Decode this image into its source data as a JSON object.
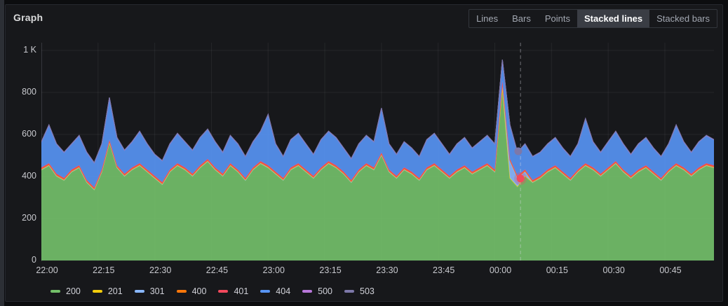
{
  "panel": {
    "title": "Graph"
  },
  "mode_switcher": {
    "options": [
      {
        "label": "Lines",
        "selected": false
      },
      {
        "label": "Bars",
        "selected": false
      },
      {
        "label": "Points",
        "selected": false
      },
      {
        "label": "Stacked lines",
        "selected": true
      },
      {
        "label": "Stacked bars",
        "selected": false
      }
    ]
  },
  "colors": {
    "page_background": "#0c0d0f",
    "panel_background": "#17181b",
    "panel_border": "#26282e",
    "grid": "rgba(204,204,220,0.08)",
    "axis_line": "rgba(204,204,220,0.14)",
    "axis_text": "#c8c9ce",
    "title_text": "#d8d9da",
    "crosshair": "rgba(220,220,230,0.45)"
  },
  "chart_data": {
    "type": "area",
    "stacked": true,
    "grid": true,
    "legend_position": "bottom",
    "title": "Graph",
    "xlabel": "",
    "ylabel": "",
    "ylim": [
      0,
      1000
    ],
    "x_minutes": [
      0,
      2,
      4,
      6,
      8,
      10,
      12,
      14,
      16,
      18,
      20,
      22,
      24,
      26,
      28,
      30,
      32,
      34,
      36,
      38,
      40,
      42,
      44,
      46,
      48,
      50,
      52,
      54,
      56,
      58,
      60,
      62,
      64,
      66,
      68,
      70,
      72,
      74,
      76,
      78,
      80,
      82,
      84,
      86,
      88,
      90,
      92,
      94,
      96,
      98,
      100,
      102,
      104,
      106,
      108,
      110,
      112,
      114,
      116,
      118,
      120,
      122,
      124,
      126,
      128,
      130,
      132,
      134,
      136,
      138,
      140,
      142,
      144,
      146,
      148,
      150,
      152,
      154,
      156,
      158,
      160,
      162,
      164,
      166,
      168,
      170,
      172,
      174,
      176,
      178
    ],
    "x_tick_minutes": [
      0,
      15,
      30,
      45,
      60,
      75,
      90,
      105,
      120,
      135,
      150,
      165
    ],
    "x_tick_labels": [
      "22:00",
      "22:15",
      "22:30",
      "22:45",
      "23:00",
      "23:15",
      "23:30",
      "23:45",
      "00:00",
      "00:15",
      "00:30",
      "00:45"
    ],
    "y_ticks": [
      0,
      200,
      400,
      600,
      800,
      1000
    ],
    "y_tick_labels": [
      "0",
      "200",
      "400",
      "600",
      "800",
      "1 K"
    ],
    "series": [
      {
        "name": "200",
        "color": "#73BF69",
        "values": [
          430,
          450,
          400,
          380,
          420,
          440,
          370,
          335,
          420,
          560,
          440,
          400,
          430,
          450,
          420,
          390,
          360,
          420,
          450,
          430,
          400,
          440,
          470,
          430,
          400,
          450,
          420,
          380,
          430,
          460,
          440,
          410,
          380,
          430,
          450,
          420,
          390,
          430,
          460,
          440,
          410,
          370,
          420,
          450,
          430,
          500,
          420,
          390,
          430,
          410,
          380,
          430,
          450,
          420,
          390,
          420,
          440,
          410,
          430,
          450,
          420,
          820,
          390,
          350,
          400,
          370,
          390,
          420,
          440,
          410,
          380,
          420,
          450,
          430,
          400,
          430,
          460,
          420,
          390,
          420,
          440,
          410,
          380,
          420,
          450,
          430,
          400,
          430,
          450,
          440
        ]
      },
      {
        "name": "201",
        "color": "#F2CC0C",
        "values": 3
      },
      {
        "name": "301",
        "color": "#8AB8FF",
        "values": [
          0,
          0,
          0,
          0,
          0,
          0,
          0,
          0,
          0,
          0,
          0,
          0,
          0,
          0,
          0,
          0,
          0,
          0,
          0,
          0,
          0,
          0,
          0,
          0,
          0,
          0,
          0,
          0,
          0,
          0,
          0,
          0,
          0,
          0,
          0,
          0,
          0,
          0,
          0,
          0,
          0,
          0,
          0,
          0,
          0,
          0,
          0,
          0,
          0,
          0,
          0,
          0,
          0,
          0,
          0,
          0,
          0,
          0,
          0,
          0,
          0,
          20,
          80,
          40,
          20,
          0,
          0,
          0,
          0,
          0,
          0,
          0,
          0,
          0,
          0,
          0,
          0,
          0,
          0,
          0,
          0,
          0,
          0,
          0,
          0,
          0,
          0,
          0,
          0,
          0
        ]
      },
      {
        "name": "400",
        "color": "#FF780A",
        "values": 4
      },
      {
        "name": "401",
        "color": "#F2495C",
        "values": 6
      },
      {
        "name": "404",
        "color": "#5794F2",
        "values": [
          121,
          181,
          141,
          121,
          121,
          141,
          131,
          116,
          121,
          201,
          131,
          111,
          121,
          151,
          121,
          101,
          101,
          121,
          141,
          121,
          111,
          131,
          141,
          121,
          101,
          131,
          121,
          101,
          121,
          141,
          241,
          131,
          101,
          131,
          141,
          121,
          101,
          131,
          141,
          131,
          111,
          101,
          121,
          131,
          121,
          211,
          121,
          101,
          121,
          111,
          101,
          131,
          141,
          121,
          101,
          121,
          131,
          111,
          121,
          131,
          121,
          101,
          161,
          111,
          121,
          111,
          111,
          121,
          131,
          111,
          101,
          121,
          211,
          121,
          101,
          121,
          141,
          121,
          101,
          121,
          131,
          111,
          101,
          121,
          181,
          121,
          101,
          121,
          131,
          121
        ]
      },
      {
        "name": "500",
        "color": "#B877D9",
        "values": 1
      },
      {
        "name": "503",
        "color": "#7D78A9",
        "values": 1
      }
    ],
    "crosshair_minute": 126.8,
    "markers": [
      {
        "series": "503",
        "minute": 126.2,
        "value": 520
      },
      {
        "series": "401",
        "minute": 126.8,
        "value": 390
      }
    ]
  }
}
